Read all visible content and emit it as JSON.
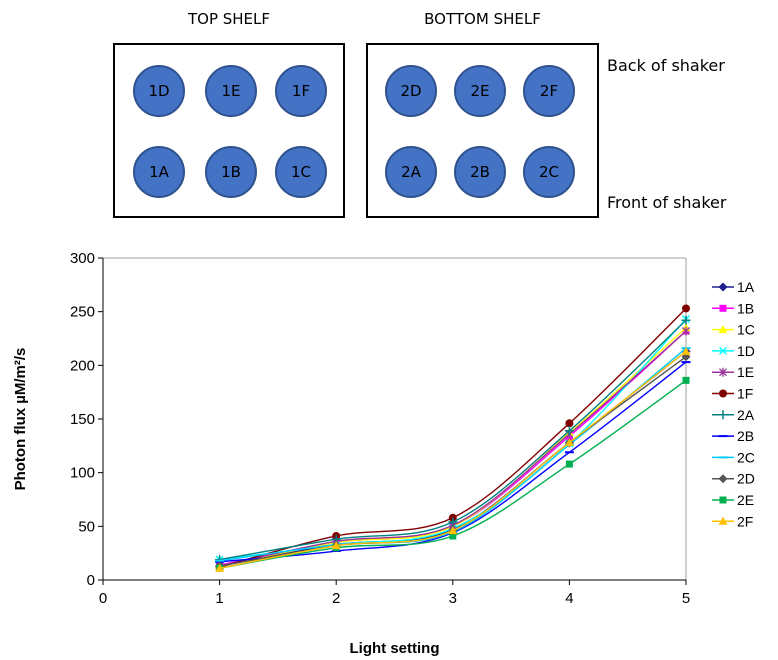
{
  "diagram": {
    "top_shelf": {
      "title": "TOP SHELF",
      "flasks": [
        "1D",
        "1E",
        "1F",
        "1A",
        "1B",
        "1C"
      ]
    },
    "bottom_shelf": {
      "title": "BOTTOM SHELF",
      "flasks": [
        "2D",
        "2E",
        "2F",
        "2A",
        "2B",
        "2C"
      ]
    },
    "back_label": "Back of shaker",
    "front_label": "Front of shaker",
    "flask_color": "#4472c4"
  },
  "chart_data": {
    "type": "line",
    "title": "",
    "xlabel": "Light setting",
    "ylabel": "Photon flux  µM/m²/s",
    "xlim": [
      0,
      5
    ],
    "ylim": [
      0,
      300
    ],
    "x_ticks": [
      "0",
      "1",
      "2",
      "3",
      "4",
      "5"
    ],
    "y_ticks": [
      "0",
      "50",
      "100",
      "150",
      "200",
      "250",
      "300"
    ],
    "grid": false,
    "legend_position": "right",
    "x": [
      1,
      2,
      3,
      4,
      5
    ],
    "series": [
      {
        "name": "1A",
        "color": "#1f1f8f",
        "marker": "diamond",
        "values": [
          13,
          33,
          47,
          128,
          213
        ]
      },
      {
        "name": "1B",
        "color": "#ff00ff",
        "marker": "square",
        "values": [
          14,
          35,
          50,
          134,
          232
        ]
      },
      {
        "name": "1C",
        "color": "#ffff00",
        "marker": "triangle",
        "values": [
          13,
          35,
          50,
          137,
          235
        ]
      },
      {
        "name": "1D",
        "color": "#00ffff",
        "marker": "x",
        "values": [
          19,
          33,
          48,
          127,
          243
        ]
      },
      {
        "name": "1E",
        "color": "#993399",
        "marker": "star",
        "values": [
          13,
          36,
          51,
          136,
          232
        ]
      },
      {
        "name": "1F",
        "color": "#800000",
        "marker": "circle",
        "values": [
          12,
          41,
          58,
          146,
          253
        ]
      },
      {
        "name": "2A",
        "color": "#008080",
        "marker": "plus",
        "values": [
          19,
          38,
          54,
          139,
          242
        ]
      },
      {
        "name": "2B",
        "color": "#0000ff",
        "marker": "dash",
        "values": [
          17,
          27,
          44,
          119,
          203
        ]
      },
      {
        "name": "2C",
        "color": "#00ccff",
        "marker": "dash",
        "values": [
          18,
          33,
          45,
          126,
          216
        ]
      },
      {
        "name": "2D",
        "color": "#555555",
        "marker": "diamond",
        "values": [
          13,
          32,
          46,
          128,
          208
        ]
      },
      {
        "name": "2E",
        "color": "#00b050",
        "marker": "square",
        "values": [
          11,
          30,
          41,
          108,
          186
        ]
      },
      {
        "name": "2F",
        "color": "#ffc000",
        "marker": "triangle",
        "values": [
          11,
          32,
          46,
          128,
          213
        ]
      }
    ]
  }
}
